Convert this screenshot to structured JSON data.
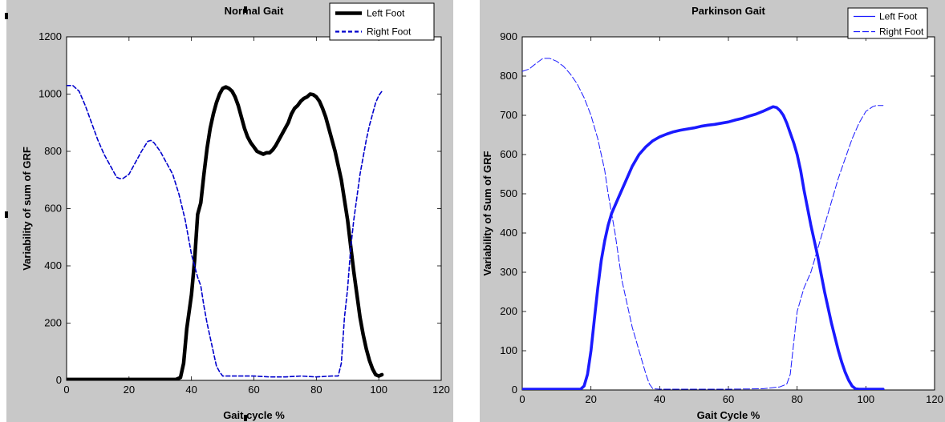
{
  "chart_data": [
    {
      "type": "line",
      "title": "Normal Gait",
      "xlabel": "Gait cycle %",
      "ylabel": "Variability of sum of GRF",
      "xlim": [
        0,
        120
      ],
      "ylim": [
        0,
        1200
      ],
      "xticks": [
        "0",
        "20",
        "40",
        "60",
        "80",
        "100",
        "120"
      ],
      "yticks": [
        "0",
        "200",
        "400",
        "600",
        "800",
        "1000",
        "1200"
      ],
      "legend_position": "top-right",
      "series": [
        {
          "name": "Left Foot",
          "color": "#000000",
          "style": "solid-thick",
          "points": [
            [
              0,
              3
            ],
            [
              10,
              3
            ],
            [
              20,
              3
            ],
            [
              30,
              3
            ],
            [
              35,
              3
            ],
            [
              36.5,
              10
            ],
            [
              37.5,
              60
            ],
            [
              38.5,
              180
            ],
            [
              40,
              300
            ],
            [
              41,
              420
            ],
            [
              42,
              580
            ],
            [
              43,
              620
            ],
            [
              44,
              720
            ],
            [
              45,
              810
            ],
            [
              46,
              880
            ],
            [
              47,
              930
            ],
            [
              48,
              970
            ],
            [
              49,
              1000
            ],
            [
              50,
              1020
            ],
            [
              51,
              1025
            ],
            [
              52,
              1020
            ],
            [
              53,
              1010
            ],
            [
              54,
              990
            ],
            [
              55,
              960
            ],
            [
              56,
              920
            ],
            [
              57,
              880
            ],
            [
              58,
              850
            ],
            [
              59,
              830
            ],
            [
              60,
              815
            ],
            [
              61,
              800
            ],
            [
              62,
              795
            ],
            [
              63,
              790
            ],
            [
              64,
              795
            ],
            [
              65,
              795
            ],
            [
              66,
              805
            ],
            [
              67,
              820
            ],
            [
              68,
              840
            ],
            [
              69,
              860
            ],
            [
              70,
              880
            ],
            [
              71,
              900
            ],
            [
              72,
              930
            ],
            [
              73,
              950
            ],
            [
              74,
              960
            ],
            [
              75,
              975
            ],
            [
              76,
              985
            ],
            [
              77,
              990
            ],
            [
              78,
              1000
            ],
            [
              79,
              998
            ],
            [
              80,
              990
            ],
            [
              81,
              975
            ],
            [
              82,
              950
            ],
            [
              83,
              920
            ],
            [
              84,
              880
            ],
            [
              85,
              840
            ],
            [
              86,
              800
            ],
            [
              87,
              750
            ],
            [
              88,
              700
            ],
            [
              89,
              630
            ],
            [
              90,
              560
            ],
            [
              91,
              470
            ],
            [
              92,
              380
            ],
            [
              93,
              300
            ],
            [
              94,
              220
            ],
            [
              95,
              160
            ],
            [
              96,
              110
            ],
            [
              97,
              70
            ],
            [
              98,
              40
            ],
            [
              99,
              20
            ],
            [
              100,
              15
            ],
            [
              101,
              20
            ]
          ]
        },
        {
          "name": "Right Foot",
          "color": "#0000cc",
          "style": "dashed",
          "points": [
            [
              0,
              1030
            ],
            [
              2,
              1030
            ],
            [
              4,
              1010
            ],
            [
              6,
              960
            ],
            [
              8,
              900
            ],
            [
              10,
              840
            ],
            [
              12,
              790
            ],
            [
              14,
              750
            ],
            [
              16,
              710
            ],
            [
              17,
              705
            ],
            [
              18,
              705
            ],
            [
              20,
              720
            ],
            [
              22,
              760
            ],
            [
              24,
              800
            ],
            [
              26,
              835
            ],
            [
              27,
              838
            ],
            [
              28,
              830
            ],
            [
              30,
              800
            ],
            [
              32,
              760
            ],
            [
              34,
              720
            ],
            [
              36,
              650
            ],
            [
              38,
              560
            ],
            [
              40,
              440
            ],
            [
              42,
              360
            ],
            [
              43,
              330
            ],
            [
              44,
              260
            ],
            [
              45,
              200
            ],
            [
              46,
              150
            ],
            [
              47,
              100
            ],
            [
              48,
              50
            ],
            [
              49,
              30
            ],
            [
              50,
              15
            ],
            [
              52,
              15
            ],
            [
              55,
              15
            ],
            [
              60,
              15
            ],
            [
              65,
              12
            ],
            [
              70,
              12
            ],
            [
              75,
              15
            ],
            [
              80,
              12
            ],
            [
              85,
              15
            ],
            [
              87,
              15
            ],
            [
              88,
              60
            ],
            [
              89,
              220
            ],
            [
              90,
              320
            ],
            [
              91,
              460
            ],
            [
              92,
              560
            ],
            [
              93,
              640
            ],
            [
              94,
              720
            ],
            [
              95,
              780
            ],
            [
              96,
              840
            ],
            [
              97,
              890
            ],
            [
              98,
              930
            ],
            [
              99,
              970
            ],
            [
              100,
              995
            ],
            [
              101,
              1010
            ]
          ]
        }
      ]
    },
    {
      "type": "line",
      "title": "Parkinson Gait",
      "xlabel": "Gait Cycle %",
      "ylabel": "Variability of Sum of GRF",
      "xlim": [
        0,
        120
      ],
      "ylim": [
        0,
        900
      ],
      "xticks": [
        "0",
        "20",
        "40",
        "60",
        "80",
        "100",
        "120"
      ],
      "yticks": [
        "0",
        "100",
        "200",
        "300",
        "400",
        "500",
        "600",
        "700",
        "800",
        "900"
      ],
      "legend_position": "top-right",
      "series": [
        {
          "name": "Left Foot",
          "color": "#1a1aff",
          "style": "solid-thick",
          "points": [
            [
              0,
              2
            ],
            [
              10,
              2
            ],
            [
              17,
              2
            ],
            [
              18,
              10
            ],
            [
              19,
              40
            ],
            [
              20,
              100
            ],
            [
              21,
              180
            ],
            [
              22,
              260
            ],
            [
              23,
              330
            ],
            [
              24,
              380
            ],
            [
              25,
              420
            ],
            [
              26,
              450
            ],
            [
              28,
              490
            ],
            [
              30,
              530
            ],
            [
              32,
              570
            ],
            [
              34,
              600
            ],
            [
              36,
              620
            ],
            [
              38,
              635
            ],
            [
              40,
              645
            ],
            [
              42,
              652
            ],
            [
              44,
              658
            ],
            [
              46,
              662
            ],
            [
              48,
              665
            ],
            [
              50,
              668
            ],
            [
              52,
              672
            ],
            [
              54,
              675
            ],
            [
              56,
              677
            ],
            [
              58,
              680
            ],
            [
              60,
              683
            ],
            [
              62,
              688
            ],
            [
              64,
              692
            ],
            [
              66,
              698
            ],
            [
              68,
              703
            ],
            [
              70,
              710
            ],
            [
              72,
              718
            ],
            [
              73,
              722
            ],
            [
              74,
              720
            ],
            [
              75,
              712
            ],
            [
              76,
              700
            ],
            [
              77,
              680
            ],
            [
              78,
              655
            ],
            [
              79,
              630
            ],
            [
              80,
              600
            ],
            [
              81,
              560
            ],
            [
              82,
              510
            ],
            [
              83,
              465
            ],
            [
              84,
              420
            ],
            [
              85,
              380
            ],
            [
              86,
              340
            ],
            [
              87,
              295
            ],
            [
              88,
              250
            ],
            [
              89,
              210
            ],
            [
              90,
              170
            ],
            [
              91,
              135
            ],
            [
              92,
              100
            ],
            [
              93,
              70
            ],
            [
              94,
              45
            ],
            [
              95,
              25
            ],
            [
              96,
              10
            ],
            [
              97,
              3
            ],
            [
              98,
              2
            ],
            [
              105,
              2
            ]
          ]
        },
        {
          "name": "Right Foot",
          "color": "#1a1aff",
          "style": "dashed",
          "points": [
            [
              0,
              812
            ],
            [
              2,
              818
            ],
            [
              4,
              832
            ],
            [
              6,
              845
            ],
            [
              8,
              845
            ],
            [
              10,
              838
            ],
            [
              12,
              825
            ],
            [
              14,
              805
            ],
            [
              16,
              780
            ],
            [
              18,
              745
            ],
            [
              20,
              700
            ],
            [
              22,
              640
            ],
            [
              24,
              560
            ],
            [
              25,
              500
            ],
            [
              26,
              450
            ],
            [
              27,
              400
            ],
            [
              28,
              340
            ],
            [
              29,
              280
            ],
            [
              30,
              240
            ],
            [
              31,
              200
            ],
            [
              32,
              160
            ],
            [
              33,
              130
            ],
            [
              34,
              100
            ],
            [
              35,
              70
            ],
            [
              36,
              40
            ],
            [
              37,
              15
            ],
            [
              38,
              3
            ],
            [
              40,
              2
            ],
            [
              50,
              2
            ],
            [
              60,
              2
            ],
            [
              70,
              3
            ],
            [
              72,
              5
            ],
            [
              75,
              8
            ],
            [
              77,
              15
            ],
            [
              78,
              40
            ],
            [
              79,
              120
            ],
            [
              80,
              200
            ],
            [
              82,
              260
            ],
            [
              84,
              300
            ],
            [
              86,
              360
            ],
            [
              88,
              420
            ],
            [
              90,
              480
            ],
            [
              92,
              540
            ],
            [
              94,
              590
            ],
            [
              96,
              640
            ],
            [
              98,
              680
            ],
            [
              100,
              710
            ],
            [
              102,
              722
            ],
            [
              103,
              725
            ],
            [
              105,
              725
            ]
          ]
        }
      ]
    }
  ]
}
